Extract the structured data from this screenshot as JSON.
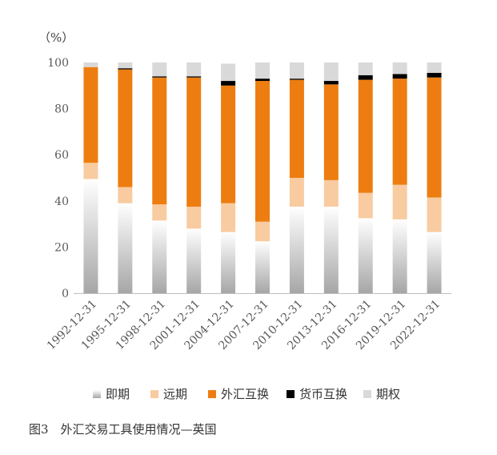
{
  "unit_label": "（%）",
  "caption": "图3　外汇交易工具使用情况—英国",
  "chart_data": {
    "type": "bar",
    "stacked": true,
    "categories": [
      "1992-12-31",
      "1995-12-31",
      "1998-12-31",
      "2001-12-31",
      "2004-12-31",
      "2007-12-31",
      "2010-12-31",
      "2013-12-31",
      "2016-12-31",
      "2019-12-31",
      "2022-12-31"
    ],
    "series": [
      {
        "name": "即期",
        "color": "#b0b0b0",
        "values": [
          49.5,
          39,
          31.5,
          28,
          26.5,
          22.5,
          37.5,
          37.5,
          32.5,
          32,
          26.5
        ]
      },
      {
        "name": "远期",
        "color": "#f8cba0",
        "values": [
          7,
          7,
          7,
          9.5,
          12.5,
          8.5,
          12.5,
          11.5,
          11,
          15,
          15
        ]
      },
      {
        "name": "外汇互换",
        "color": "#ed7d10",
        "values": [
          41.5,
          51,
          55,
          56,
          51,
          61,
          42.5,
          41.5,
          49,
          46,
          52
        ]
      },
      {
        "name": "货币互换",
        "color": "#000000",
        "values": [
          0,
          0.5,
          0.5,
          0.5,
          2,
          1,
          0.5,
          1.5,
          2,
          2,
          2
        ]
      },
      {
        "name": "期权",
        "color": "#d9d9d9",
        "values": [
          2,
          2.5,
          6,
          6,
          7.5,
          7,
          7,
          8,
          5.5,
          5,
          4.5
        ]
      }
    ],
    "ylim": [
      0,
      100
    ],
    "yticks": [
      0,
      20,
      40,
      60,
      80,
      100
    ],
    "grid": false,
    "legend_position": "bottom"
  }
}
